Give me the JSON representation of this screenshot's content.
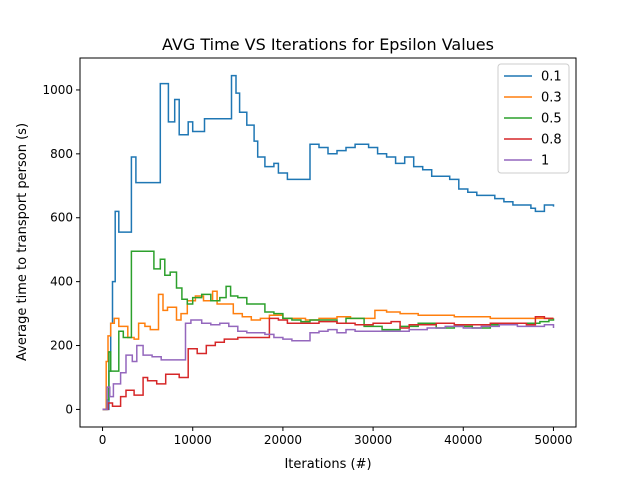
{
  "chart_data": {
    "type": "line",
    "title": "AVG Time VS Iterations for Epsilon Values",
    "xlabel": "Iterations (#)",
    "ylabel": "Average time to transport person (s)",
    "xlim": [
      -2500,
      52500
    ],
    "ylim": [
      -55,
      1100
    ],
    "xticks": [
      0,
      10000,
      20000,
      30000,
      40000,
      50000
    ],
    "yticks": [
      0,
      200,
      400,
      600,
      800,
      1000
    ],
    "grid": false,
    "legend": "top-right",
    "series": [
      {
        "name": "0.1",
        "color": "#1f77b4",
        "points": [
          [
            0,
            0
          ],
          [
            600,
            0
          ],
          [
            700,
            120
          ],
          [
            900,
            270
          ],
          [
            1100,
            400
          ],
          [
            1400,
            620
          ],
          [
            1800,
            555
          ],
          [
            2300,
            555
          ],
          [
            3200,
            790
          ],
          [
            3700,
            710
          ],
          [
            5000,
            710
          ],
          [
            6400,
            1020
          ],
          [
            7300,
            900
          ],
          [
            8000,
            970
          ],
          [
            8500,
            860
          ],
          [
            9500,
            900
          ],
          [
            10000,
            870
          ],
          [
            11300,
            910
          ],
          [
            14300,
            1045
          ],
          [
            14800,
            990
          ],
          [
            15200,
            930
          ],
          [
            16000,
            890
          ],
          [
            16800,
            840
          ],
          [
            17200,
            790
          ],
          [
            18000,
            760
          ],
          [
            19000,
            770
          ],
          [
            19500,
            740
          ],
          [
            20500,
            720
          ],
          [
            22500,
            720
          ],
          [
            23000,
            830
          ],
          [
            24000,
            820
          ],
          [
            25000,
            800
          ],
          [
            26000,
            810
          ],
          [
            27000,
            820
          ],
          [
            28000,
            830
          ],
          [
            29500,
            820
          ],
          [
            30500,
            800
          ],
          [
            31500,
            790
          ],
          [
            32500,
            770
          ],
          [
            33500,
            790
          ],
          [
            34500,
            760
          ],
          [
            35500,
            750
          ],
          [
            36500,
            730
          ],
          [
            38500,
            720
          ],
          [
            39500,
            690
          ],
          [
            40500,
            680
          ],
          [
            41500,
            670
          ],
          [
            42500,
            670
          ],
          [
            43500,
            660
          ],
          [
            44500,
            650
          ],
          [
            45500,
            640
          ],
          [
            47500,
            630
          ],
          [
            48000,
            620
          ],
          [
            49000,
            640
          ],
          [
            50000,
            635
          ]
        ]
      },
      {
        "name": "0.3",
        "color": "#ff7f0e",
        "points": [
          [
            0,
            0
          ],
          [
            400,
            150
          ],
          [
            600,
            230
          ],
          [
            900,
            270
          ],
          [
            1300,
            285
          ],
          [
            1800,
            260
          ],
          [
            2800,
            225
          ],
          [
            3500,
            220
          ],
          [
            4000,
            270
          ],
          [
            4700,
            260
          ],
          [
            5300,
            250
          ],
          [
            6200,
            360
          ],
          [
            6700,
            310
          ],
          [
            7200,
            320
          ],
          [
            8200,
            280
          ],
          [
            8700,
            300
          ],
          [
            9400,
            340
          ],
          [
            10300,
            355
          ],
          [
            11200,
            340
          ],
          [
            12200,
            370
          ],
          [
            12700,
            330
          ],
          [
            13500,
            330
          ],
          [
            14500,
            300
          ],
          [
            15500,
            290
          ],
          [
            16500,
            280
          ],
          [
            17500,
            285
          ],
          [
            18500,
            295
          ],
          [
            20000,
            285
          ],
          [
            21000,
            285
          ],
          [
            22500,
            280
          ],
          [
            24000,
            285
          ],
          [
            26000,
            290
          ],
          [
            27500,
            285
          ],
          [
            29500,
            285
          ],
          [
            30200,
            310
          ],
          [
            31500,
            305
          ],
          [
            33000,
            300
          ],
          [
            35000,
            295
          ],
          [
            37000,
            295
          ],
          [
            39000,
            290
          ],
          [
            41000,
            290
          ],
          [
            43000,
            285
          ],
          [
            45000,
            285
          ],
          [
            47000,
            285
          ],
          [
            49000,
            285
          ],
          [
            50000,
            285
          ]
        ]
      },
      {
        "name": "0.5",
        "color": "#2ca02c",
        "points": [
          [
            0,
            0
          ],
          [
            500,
            30
          ],
          [
            700,
            180
          ],
          [
            900,
            120
          ],
          [
            1300,
            120
          ],
          [
            1800,
            245
          ],
          [
            2300,
            225
          ],
          [
            3200,
            495
          ],
          [
            4500,
            495
          ],
          [
            5700,
            440
          ],
          [
            6400,
            470
          ],
          [
            6900,
            420
          ],
          [
            7500,
            430
          ],
          [
            8200,
            380
          ],
          [
            8800,
            345
          ],
          [
            9400,
            330
          ],
          [
            10000,
            350
          ],
          [
            11000,
            360
          ],
          [
            12000,
            340
          ],
          [
            13000,
            350
          ],
          [
            13700,
            385
          ],
          [
            14200,
            355
          ],
          [
            15000,
            350
          ],
          [
            16000,
            330
          ],
          [
            17000,
            330
          ],
          [
            18000,
            305
          ],
          [
            19000,
            300
          ],
          [
            20000,
            285
          ],
          [
            21000,
            280
          ],
          [
            22000,
            275
          ],
          [
            23000,
            280
          ],
          [
            24000,
            280
          ],
          [
            26000,
            270
          ],
          [
            27000,
            285
          ],
          [
            29000,
            260
          ],
          [
            31000,
            250
          ],
          [
            33000,
            260
          ],
          [
            35000,
            270
          ],
          [
            37000,
            255
          ],
          [
            39000,
            260
          ],
          [
            41000,
            255
          ],
          [
            43000,
            265
          ],
          [
            45000,
            270
          ],
          [
            47000,
            270
          ],
          [
            48500,
            275
          ],
          [
            49500,
            280
          ],
          [
            50000,
            285
          ]
        ]
      },
      {
        "name": "0.8",
        "color": "#d62728",
        "points": [
          [
            0,
            0
          ],
          [
            600,
            20
          ],
          [
            800,
            20
          ],
          [
            1100,
            10
          ],
          [
            2000,
            40
          ],
          [
            2600,
            60
          ],
          [
            3500,
            45
          ],
          [
            4500,
            100
          ],
          [
            5000,
            90
          ],
          [
            6000,
            80
          ],
          [
            7000,
            110
          ],
          [
            8500,
            100
          ],
          [
            9500,
            190
          ],
          [
            10500,
            175
          ],
          [
            11500,
            200
          ],
          [
            12500,
            210
          ],
          [
            13500,
            220
          ],
          [
            15000,
            225
          ],
          [
            16000,
            225
          ],
          [
            18000,
            225
          ],
          [
            18500,
            285
          ],
          [
            19500,
            280
          ],
          [
            20500,
            270
          ],
          [
            22000,
            270
          ],
          [
            24000,
            275
          ],
          [
            26000,
            270
          ],
          [
            28000,
            265
          ],
          [
            30000,
            270
          ],
          [
            32000,
            275
          ],
          [
            33000,
            255
          ],
          [
            34000,
            265
          ],
          [
            35000,
            265
          ],
          [
            37000,
            270
          ],
          [
            39000,
            265
          ],
          [
            41000,
            265
          ],
          [
            43000,
            270
          ],
          [
            45000,
            270
          ],
          [
            47000,
            265
          ],
          [
            48000,
            290
          ],
          [
            49000,
            285
          ],
          [
            50000,
            285
          ]
        ]
      },
      {
        "name": "1",
        "color": "#9467bd",
        "points": [
          [
            0,
            0
          ],
          [
            500,
            70
          ],
          [
            800,
            40
          ],
          [
            1200,
            80
          ],
          [
            2000,
            115
          ],
          [
            2600,
            170
          ],
          [
            3300,
            150
          ],
          [
            3800,
            200
          ],
          [
            4500,
            170
          ],
          [
            5500,
            165
          ],
          [
            6500,
            155
          ],
          [
            8700,
            155
          ],
          [
            9200,
            270
          ],
          [
            9800,
            280
          ],
          [
            11000,
            270
          ],
          [
            12000,
            265
          ],
          [
            13000,
            270
          ],
          [
            14000,
            260
          ],
          [
            15000,
            245
          ],
          [
            16000,
            240
          ],
          [
            17000,
            240
          ],
          [
            18000,
            235
          ],
          [
            19000,
            225
          ],
          [
            20000,
            220
          ],
          [
            21000,
            215
          ],
          [
            22000,
            215
          ],
          [
            23000,
            240
          ],
          [
            24000,
            245
          ],
          [
            25000,
            250
          ],
          [
            26000,
            240
          ],
          [
            27000,
            250
          ],
          [
            28000,
            245
          ],
          [
            30000,
            245
          ],
          [
            32000,
            245
          ],
          [
            34000,
            250
          ],
          [
            36000,
            255
          ],
          [
            38000,
            260
          ],
          [
            40000,
            255
          ],
          [
            42000,
            260
          ],
          [
            44000,
            265
          ],
          [
            46000,
            260
          ],
          [
            48000,
            260
          ],
          [
            49000,
            265
          ],
          [
            50000,
            255
          ]
        ]
      }
    ]
  }
}
